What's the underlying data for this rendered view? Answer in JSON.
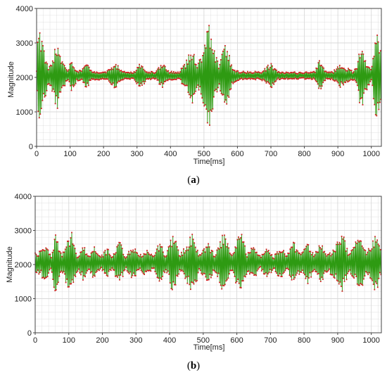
{
  "figure": {
    "background": "#ffffff",
    "grid_color": "#d9d9d9",
    "frame_color": "#444444",
    "colors": {
      "signal": "#2e9a12",
      "points": "#d02020"
    }
  },
  "chart_data": [
    {
      "type": "line",
      "panel_label": {
        "open": "(",
        "letter": "a",
        "close": ")"
      },
      "xlabel": "Time[ms]",
      "ylabel": "Magnitude",
      "xlim": [
        0,
        1030
      ],
      "ylim": [
        0,
        4000
      ],
      "xticks": [
        0,
        100,
        200,
        300,
        400,
        500,
        600,
        700,
        800,
        900,
        1000
      ],
      "yticks": [
        0,
        1000,
        2000,
        3000,
        4000
      ],
      "grid": true,
      "series": [
        {
          "baseline": 2050,
          "envelope": [
            {
              "t": 0,
              "a": 150
            },
            {
              "t": 5,
              "a": 1550
            },
            {
              "t": 18,
              "a": 1000
            },
            {
              "t": 35,
              "a": 250
            },
            {
              "t": 45,
              "a": 450
            },
            {
              "t": 62,
              "a": 1100
            },
            {
              "t": 80,
              "a": 350
            },
            {
              "t": 95,
              "a": 200
            },
            {
              "t": 105,
              "a": 550
            },
            {
              "t": 120,
              "a": 150
            },
            {
              "t": 135,
              "a": 150
            },
            {
              "t": 148,
              "a": 400
            },
            {
              "t": 165,
              "a": 130
            },
            {
              "t": 210,
              "a": 130
            },
            {
              "t": 235,
              "a": 400
            },
            {
              "t": 255,
              "a": 130
            },
            {
              "t": 290,
              "a": 110
            },
            {
              "t": 310,
              "a": 380
            },
            {
              "t": 330,
              "a": 130
            },
            {
              "t": 355,
              "a": 110
            },
            {
              "t": 375,
              "a": 380
            },
            {
              "t": 395,
              "a": 130
            },
            {
              "t": 425,
              "a": 110
            },
            {
              "t": 445,
              "a": 400
            },
            {
              "t": 465,
              "a": 850
            },
            {
              "t": 480,
              "a": 300
            },
            {
              "t": 500,
              "a": 900
            },
            {
              "t": 515,
              "a": 1600
            },
            {
              "t": 530,
              "a": 800
            },
            {
              "t": 545,
              "a": 300
            },
            {
              "t": 565,
              "a": 1050
            },
            {
              "t": 585,
              "a": 250
            },
            {
              "t": 605,
              "a": 130
            },
            {
              "t": 640,
              "a": 130
            },
            {
              "t": 670,
              "a": 120
            },
            {
              "t": 700,
              "a": 380
            },
            {
              "t": 720,
              "a": 120
            },
            {
              "t": 745,
              "a": 110
            },
            {
              "t": 765,
              "a": 110
            },
            {
              "t": 785,
              "a": 100
            },
            {
              "t": 805,
              "a": 110
            },
            {
              "t": 830,
              "a": 120
            },
            {
              "t": 845,
              "a": 450
            },
            {
              "t": 865,
              "a": 130
            },
            {
              "t": 885,
              "a": 120
            },
            {
              "t": 905,
              "a": 350
            },
            {
              "t": 925,
              "a": 250
            },
            {
              "t": 945,
              "a": 130
            },
            {
              "t": 955,
              "a": 250
            },
            {
              "t": 970,
              "a": 1100
            },
            {
              "t": 985,
              "a": 450
            },
            {
              "t": 1000,
              "a": 150
            },
            {
              "t": 1015,
              "a": 1400
            },
            {
              "t": 1030,
              "a": 800
            }
          ]
        }
      ]
    },
    {
      "type": "line",
      "panel_label": {
        "open": "(",
        "letter": "b",
        "close": ")"
      },
      "xlabel": "Time[ms]",
      "ylabel": "Magnitude",
      "xlim": [
        0,
        1030
      ],
      "ylim": [
        0,
        4000
      ],
      "xticks": [
        0,
        100,
        200,
        300,
        400,
        500,
        600,
        700,
        800,
        900,
        1000
      ],
      "yticks": [
        0,
        1000,
        2000,
        3000,
        4000
      ],
      "grid": true,
      "series": [
        {
          "baseline": 2050,
          "envelope": [
            {
              "t": 0,
              "a": 300
            },
            {
              "t": 15,
              "a": 350
            },
            {
              "t": 30,
              "a": 650
            },
            {
              "t": 48,
              "a": 200
            },
            {
              "t": 60,
              "a": 1000
            },
            {
              "t": 78,
              "a": 250
            },
            {
              "t": 90,
              "a": 550
            },
            {
              "t": 108,
              "a": 950
            },
            {
              "t": 125,
              "a": 250
            },
            {
              "t": 145,
              "a": 550
            },
            {
              "t": 160,
              "a": 200
            },
            {
              "t": 175,
              "a": 500
            },
            {
              "t": 195,
              "a": 200
            },
            {
              "t": 215,
              "a": 450
            },
            {
              "t": 230,
              "a": 200
            },
            {
              "t": 250,
              "a": 700
            },
            {
              "t": 270,
              "a": 200
            },
            {
              "t": 290,
              "a": 550
            },
            {
              "t": 310,
              "a": 200
            },
            {
              "t": 330,
              "a": 450
            },
            {
              "t": 350,
              "a": 200
            },
            {
              "t": 370,
              "a": 600
            },
            {
              "t": 390,
              "a": 250
            },
            {
              "t": 410,
              "a": 950
            },
            {
              "t": 430,
              "a": 250
            },
            {
              "t": 450,
              "a": 600
            },
            {
              "t": 470,
              "a": 900
            },
            {
              "t": 490,
              "a": 250
            },
            {
              "t": 515,
              "a": 600
            },
            {
              "t": 535,
              "a": 250
            },
            {
              "t": 560,
              "a": 900
            },
            {
              "t": 585,
              "a": 250
            },
            {
              "t": 610,
              "a": 1000
            },
            {
              "t": 630,
              "a": 300
            },
            {
              "t": 650,
              "a": 500
            },
            {
              "t": 670,
              "a": 200
            },
            {
              "t": 690,
              "a": 450
            },
            {
              "t": 710,
              "a": 200
            },
            {
              "t": 730,
              "a": 500
            },
            {
              "t": 750,
              "a": 250
            },
            {
              "t": 770,
              "a": 650
            },
            {
              "t": 790,
              "a": 250
            },
            {
              "t": 810,
              "a": 650
            },
            {
              "t": 830,
              "a": 250
            },
            {
              "t": 850,
              "a": 600
            },
            {
              "t": 870,
              "a": 250
            },
            {
              "t": 890,
              "a": 500
            },
            {
              "t": 915,
              "a": 850
            },
            {
              "t": 935,
              "a": 300
            },
            {
              "t": 950,
              "a": 500
            },
            {
              "t": 965,
              "a": 1000
            },
            {
              "t": 985,
              "a": 350
            },
            {
              "t": 1000,
              "a": 600
            },
            {
              "t": 1015,
              "a": 900
            },
            {
              "t": 1030,
              "a": 300
            }
          ]
        }
      ]
    }
  ]
}
